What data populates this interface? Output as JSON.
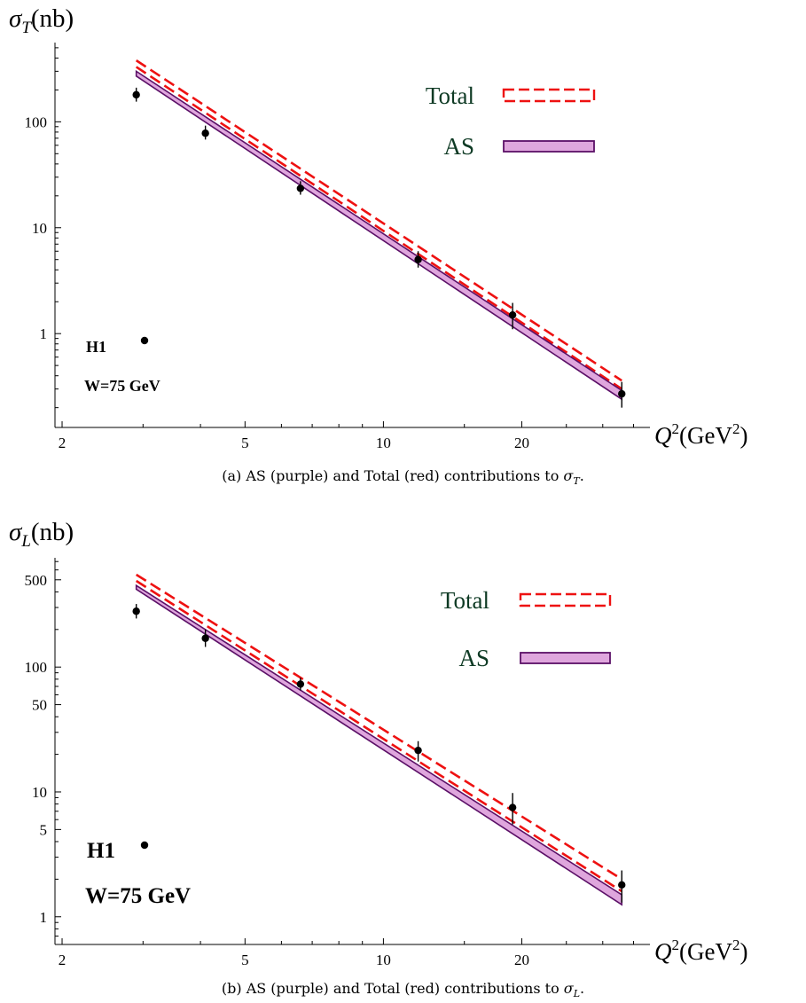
{
  "chart_data": [
    {
      "type": "line",
      "y_axis_symbol": "σ",
      "y_axis_subscript": "T",
      "y_axis_unit": "(nb)",
      "x_axis_label": "Q",
      "x_axis_unit": "(GeV",
      "x_axis_unit_close": ")",
      "x_scale": "log",
      "y_scale": "log",
      "xlim": [
        1.93,
        38
      ],
      "ylim": [
        0.13,
        560
      ],
      "x_ticks": [
        2,
        5,
        10,
        20
      ],
      "y_ticks": [
        1,
        10,
        100
      ],
      "grid": false,
      "legend_position": "top-right",
      "series": [
        {
          "name": "Total",
          "style": "dashed",
          "color": "#ee1111",
          "upper": [
            [
              2.9,
              380
            ],
            [
              33,
              0.36
            ]
          ],
          "lower": [
            [
              2.9,
              330
            ],
            [
              33,
              0.3
            ]
          ]
        },
        {
          "name": "AS",
          "style": "band",
          "color": "#5b1067",
          "fill": "#dfa6dd",
          "upper": [
            [
              2.9,
              300
            ],
            [
              33,
              0.29
            ]
          ],
          "lower": [
            [
              2.9,
              270
            ],
            [
              33,
              0.24
            ]
          ]
        }
      ],
      "data_points": [
        {
          "x": 2.9,
          "y": 180,
          "err_low": 155,
          "err_high": 210
        },
        {
          "x": 4.1,
          "y": 78,
          "err_low": 68,
          "err_high": 92
        },
        {
          "x": 6.6,
          "y": 23.5,
          "err_low": 20.5,
          "err_high": 27.5
        },
        {
          "x": 11.9,
          "y": 5.0,
          "err_low": 4.2,
          "err_high": 6.0
        },
        {
          "x": 19.1,
          "y": 1.5,
          "err_low": 1.1,
          "err_high": 1.95
        },
        {
          "x": 33,
          "y": 0.27,
          "err_low": 0.2,
          "err_high": 0.35
        }
      ],
      "data_label": "H1",
      "condition": "W=75 GeV",
      "caption": "(a) AS (purple) and Total (red) contributions to σT."
    },
    {
      "type": "line",
      "y_axis_symbol": "σ",
      "y_axis_subscript": "L",
      "y_axis_unit": "(nb)",
      "x_axis_label": "Q",
      "x_axis_unit": "(GeV",
      "x_axis_unit_close": ")",
      "x_scale": "log",
      "y_scale": "log",
      "xlim": [
        1.93,
        38
      ],
      "ylim": [
        0.6,
        750
      ],
      "x_ticks": [
        2,
        5,
        10,
        20
      ],
      "y_ticks": [
        1,
        5,
        10,
        50,
        100,
        500
      ],
      "grid": false,
      "legend_position": "top-right",
      "series": [
        {
          "name": "Total",
          "style": "dashed",
          "color": "#ee1111",
          "upper": [
            [
              2.9,
              550
            ],
            [
              33,
              2.0
            ]
          ],
          "lower": [
            [
              2.9,
              490
            ],
            [
              33,
              1.6
            ]
          ]
        },
        {
          "name": "AS",
          "style": "band",
          "color": "#5b1067",
          "fill": "#dfa6dd",
          "upper": [
            [
              2.9,
              450
            ],
            [
              33,
              1.5
            ]
          ],
          "lower": [
            [
              2.9,
              420
            ],
            [
              33,
              1.25
            ]
          ]
        }
      ],
      "data_points": [
        {
          "x": 2.9,
          "y": 280,
          "err_low": 245,
          "err_high": 320
        },
        {
          "x": 4.1,
          "y": 170,
          "err_low": 145,
          "err_high": 200
        },
        {
          "x": 6.6,
          "y": 73,
          "err_low": 65,
          "err_high": 82
        },
        {
          "x": 11.9,
          "y": 21.5,
          "err_low": 17.5,
          "err_high": 25.5
        },
        {
          "x": 19.1,
          "y": 7.5,
          "err_low": 5.5,
          "err_high": 9.8
        },
        {
          "x": 33,
          "y": 1.8,
          "err_low": 1.3,
          "err_high": 2.35
        }
      ],
      "data_label": "H1",
      "condition": "W=75 GeV",
      "caption": "(b) AS (purple) and Total (red) contributions to σL."
    }
  ],
  "captions": {
    "a_prefix": "(a) AS (purple) and Total (red) contributions to ",
    "a_symbol": "σ",
    "a_sub": "T",
    "b_prefix": "(b) AS (purple) and Total (red) contributions to ",
    "b_symbol": "σ",
    "b_sub": "L",
    "suffix": "."
  }
}
